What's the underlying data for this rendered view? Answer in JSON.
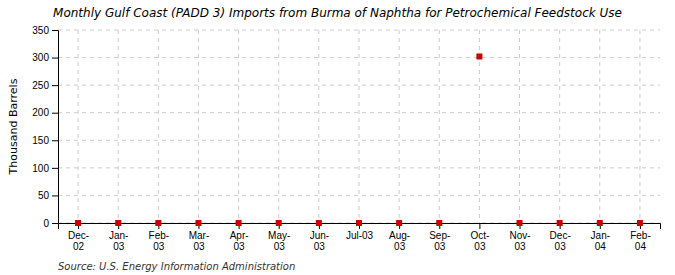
{
  "chart_data": {
    "type": "scatter",
    "title": "Monthly Gulf Coast (PADD 3) Imports from Burma of Naphtha for Petrochemical Feedstock Use",
    "y_label": "Thousand Barrels",
    "source": "Source: U.S. Energy Information Administration",
    "categories": [
      "Dec-\n02",
      "Jan-\n03",
      "Feb-\n03",
      "Mar-\n03",
      "Apr-\n03",
      "May-\n03",
      "Jun-\n03",
      "Jul-03",
      "Aug-\n03",
      "Sep-\n03",
      "Oct-\n03",
      "Nov-\n03",
      "Dec-\n03",
      "Jan-\n04",
      "Feb-\n04"
    ],
    "values": [
      0,
      0,
      0,
      0,
      0,
      0,
      0,
      0,
      0,
      0,
      302,
      0,
      0,
      0,
      0
    ],
    "color": "#cc0000",
    "marker": "square",
    "ylim": [
      0,
      350
    ],
    "yticks": [
      0,
      50,
      100,
      150,
      200,
      250,
      300,
      350
    ],
    "grid": true
  }
}
